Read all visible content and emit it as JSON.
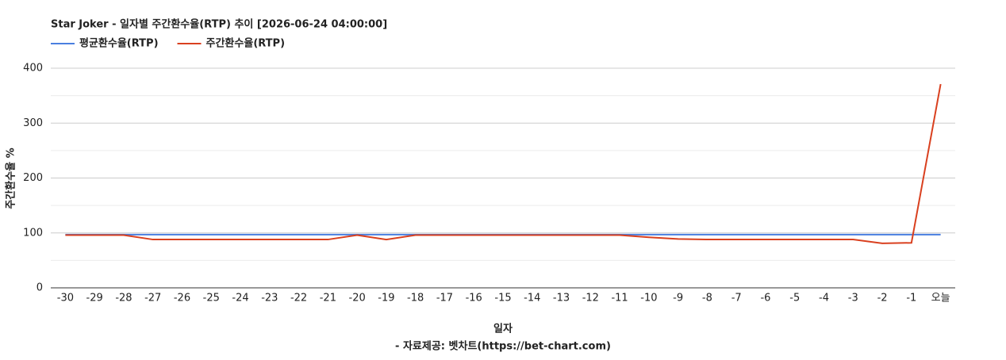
{
  "chart_data": {
    "type": "line",
    "title": "Star Joker - 일자별 주간환수율(RTP) 추이 [2026-06-24 04:00:00]",
    "x_label": "일자",
    "y_label": "주간환수율 %",
    "source": "- 자료제공: 벳차트(https://bet-chart.com)",
    "categories": [
      "-30",
      "-29",
      "-28",
      "-27",
      "-26",
      "-25",
      "-24",
      "-23",
      "-22",
      "-21",
      "-20",
      "-19",
      "-18",
      "-17",
      "-16",
      "-15",
      "-14",
      "-13",
      "-12",
      "-11",
      "-10",
      "-9",
      "-8",
      "-7",
      "-6",
      "-5",
      "-4",
      "-3",
      "-2",
      "-1",
      "오늘"
    ],
    "series": [
      {
        "name": "평균환수율(RTP)",
        "color": "#4a7fe0",
        "values": [
          97,
          97,
          97,
          97,
          97,
          97,
          97,
          97,
          97,
          97,
          97,
          97,
          97,
          97,
          97,
          97,
          97,
          97,
          97,
          97,
          97,
          97,
          97,
          97,
          97,
          97,
          97,
          97,
          97,
          97,
          97
        ]
      },
      {
        "name": "주간환수율(RTP)",
        "color": "#d9401f",
        "values": [
          96,
          96,
          96,
          88,
          88,
          88,
          88,
          88,
          88,
          88,
          96,
          88,
          96,
          96,
          96,
          96,
          96,
          96,
          96,
          96,
          92,
          89,
          88,
          88,
          88,
          88,
          88,
          88,
          81,
          82,
          371
        ]
      }
    ],
    "ylim": [
      0,
      400
    ],
    "yticks": [
      0,
      100,
      200,
      300,
      400
    ],
    "grid": true,
    "legend": "top-left"
  }
}
